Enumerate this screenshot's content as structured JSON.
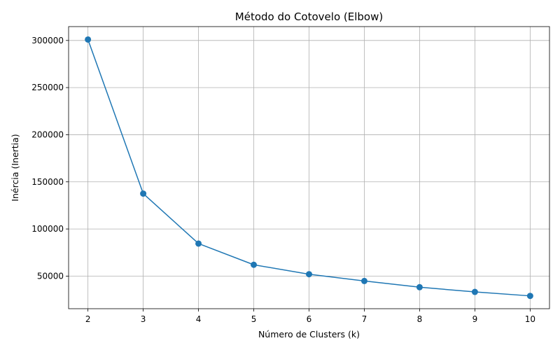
{
  "chart_data": {
    "type": "line",
    "title": "Método do Cotovelo (Elbow)",
    "xlabel": "Número de Clusters (k)",
    "ylabel": "Inércia (Inertia)",
    "x": [
      2,
      3,
      4,
      5,
      6,
      7,
      8,
      9,
      10
    ],
    "series": [
      {
        "values": [
          301000,
          137500,
          84500,
          62000,
          52000,
          44800,
          38200,
          33200,
          29000
        ]
      }
    ],
    "xticks": [
      "2",
      "3",
      "4",
      "5",
      "6",
      "7",
      "8",
      "9",
      "10"
    ],
    "yticks": [
      "50000",
      "100000",
      "150000",
      "200000",
      "250000",
      "300000"
    ],
    "xlim": [
      1.65,
      10.35
    ],
    "ylim": [
      15400,
      314700
    ],
    "grid": true,
    "marker": "circle",
    "line_color": "#1f77b4",
    "grid_color": "#b0b0b0"
  }
}
